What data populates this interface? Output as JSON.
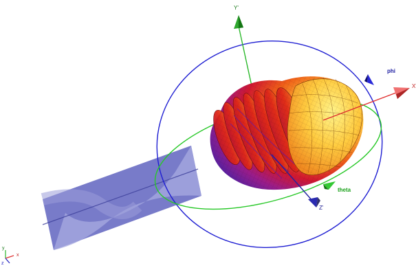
{
  "axes": {
    "x_label": "X'",
    "y_label": "Y'",
    "z_label": "Z'"
  },
  "circles": {
    "phi_label": "phi",
    "theta_label": "theta"
  },
  "triad": {
    "x": "x",
    "y": "y",
    "z": "z"
  },
  "colors": {
    "phi_circle": "#1e1ed2",
    "theta_circle": "#28c828",
    "x_axis": "#e03030",
    "y_axis": "#2bb82b",
    "z_axis": "#2020a0",
    "pattern_hot": "#ffd24a",
    "pattern_mid": "#e83010",
    "pattern_cold": "#8020a0",
    "structure": "#6a6ec0"
  },
  "icons": {
    "x_axis_cone": "red-cone-icon",
    "y_axis_cone": "green-cone-icon",
    "z_axis_cone": "blue-cone-icon",
    "phi_arrow": "blue-arrowhead-icon",
    "theta_arrow": "green-arrowhead-icon"
  }
}
